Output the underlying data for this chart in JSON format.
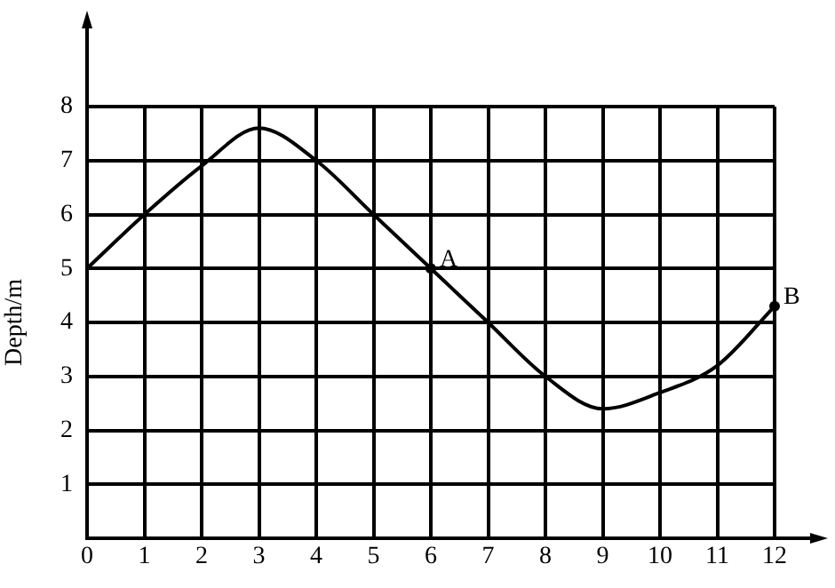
{
  "chart_data": {
    "type": "line",
    "ylabel": "Depth/m",
    "x": [
      0,
      1,
      2,
      3,
      4,
      5,
      6,
      7,
      8,
      9,
      10,
      11,
      12
    ],
    "series": [
      {
        "color": "#000000",
        "values": [
          5,
          6,
          6.9,
          7.6,
          7,
          6,
          5,
          4,
          3,
          2.4,
          2.7,
          3.2,
          4.3
        ]
      }
    ],
    "xlim": [
      0,
      12
    ],
    "xticks": [
      0,
      1,
      2,
      3,
      4,
      5,
      6,
      7,
      8,
      9,
      10,
      11,
      12
    ],
    "ylim": [
      0,
      8
    ],
    "yticks": [
      1,
      2,
      3,
      4,
      5,
      6,
      7,
      8
    ],
    "grid": true,
    "legend": false,
    "marker": "none",
    "line_style": "solid",
    "annotations": [
      {
        "text": "A",
        "x": 6,
        "y": 5
      },
      {
        "text": "B",
        "x": 12,
        "y": 4.3
      }
    ]
  }
}
